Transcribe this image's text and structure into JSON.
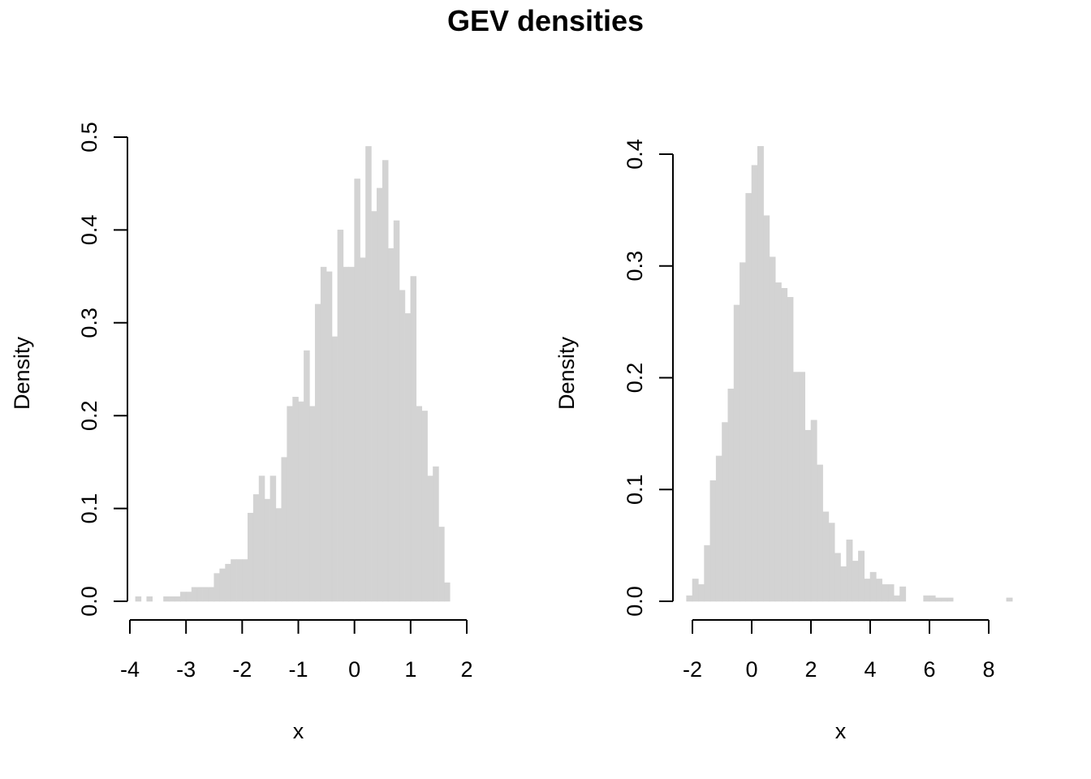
{
  "title": "GEV densities",
  "colors": {
    "bar": "#d3d3d3",
    "axis": "#000000",
    "background": "#ffffff"
  },
  "chart_data": [
    {
      "type": "bar",
      "subtype": "histogram",
      "title": "",
      "xlabel": "x",
      "ylabel": "Density",
      "xlim": [
        -4,
        2
      ],
      "ylim": [
        0,
        0.5
      ],
      "xticks": [
        -4,
        -3,
        -2,
        -1,
        0,
        1,
        2
      ],
      "xtick_labels": [
        "-4",
        "-3",
        "-2",
        "-1",
        "0",
        "1",
        "2"
      ],
      "yticks": [
        0,
        0.1,
        0.2,
        0.3,
        0.4,
        0.5
      ],
      "ytick_labels": [
        "0.0",
        "0.1",
        "0.2",
        "0.3",
        "0.4",
        "0.5"
      ],
      "grid": false,
      "bin_start": -3.9,
      "bin_width": 0.1,
      "values": [
        0.005,
        0,
        0.005,
        0,
        0,
        0.005,
        0.005,
        0.005,
        0.01,
        0.01,
        0.015,
        0.015,
        0.015,
        0.015,
        0.03,
        0.035,
        0.04,
        0.045,
        0.045,
        0.045,
        0.095,
        0.115,
        0.135,
        0.11,
        0.135,
        0.1,
        0.155,
        0.21,
        0.22,
        0.215,
        0.27,
        0.21,
        0.32,
        0.36,
        0.355,
        0.285,
        0.4,
        0.36,
        0.36,
        0.455,
        0.37,
        0.49,
        0.42,
        0.445,
        0.475,
        0.38,
        0.41,
        0.335,
        0.31,
        0.35,
        0.21,
        0.205,
        0.135,
        0.145,
        0.08,
        0.02
      ]
    },
    {
      "type": "bar",
      "subtype": "histogram",
      "title": "",
      "xlabel": "x",
      "ylabel": "Density",
      "xlim": [
        -2,
        8
      ],
      "ylim": [
        0,
        0.4
      ],
      "xticks": [
        -2,
        0,
        2,
        4,
        6,
        8
      ],
      "xtick_labels": [
        "-2",
        "0",
        "2",
        "4",
        "6",
        "8"
      ],
      "yticks": [
        0,
        0.1,
        0.2,
        0.3,
        0.4
      ],
      "ytick_labels": [
        "0.0",
        "0.1",
        "0.2",
        "0.3",
        "0.4"
      ],
      "grid": false,
      "bin_start": -2.2,
      "bin_width": 0.2,
      "values": [
        0.005,
        0.02,
        0.015,
        0.05,
        0.108,
        0.13,
        0.16,
        0.19,
        0.265,
        0.303,
        0.365,
        0.39,
        0.407,
        0.345,
        0.308,
        0.285,
        0.28,
        0.272,
        0.205,
        0.205,
        0.153,
        0.162,
        0.122,
        0.08,
        0.07,
        0.043,
        0.031,
        0.055,
        0.036,
        0.045,
        0.02,
        0.026,
        0.02,
        0.015,
        0.015,
        0.005,
        0.013,
        0,
        0,
        0,
        0.005,
        0.005,
        0.003,
        0.003,
        0.003,
        0,
        0,
        0,
        0,
        0,
        0,
        0,
        0,
        0,
        0.003
      ]
    }
  ]
}
